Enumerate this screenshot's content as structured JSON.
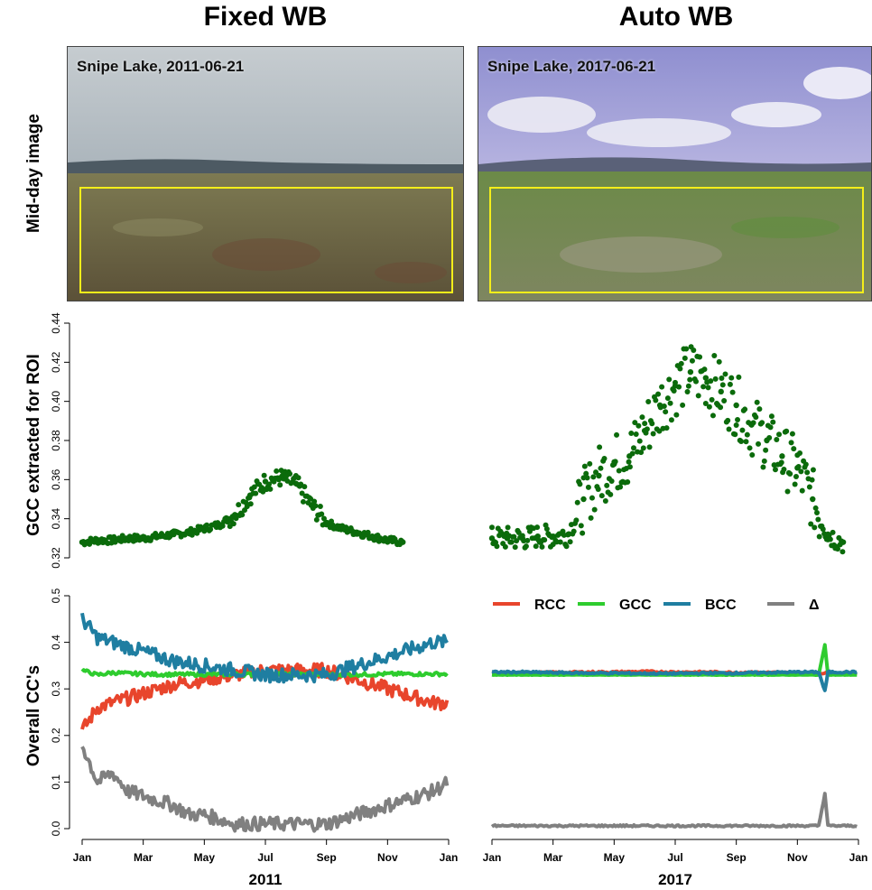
{
  "columns": [
    {
      "title": "Fixed WB",
      "image_caption": "Snipe Lake, 2011-06-21",
      "year_label": "2011"
    },
    {
      "title": "Auto WB",
      "image_caption": "Snipe Lake, 2017-06-21",
      "year_label": "2017"
    }
  ],
  "row_labels": {
    "image": "Mid-day image",
    "gcc": "GCC extracted for ROI",
    "cc": "Overall CC's"
  },
  "legend": [
    {
      "label": "RCC",
      "color": "#e8452c"
    },
    {
      "label": "GCC",
      "color": "#2ecc2e"
    },
    {
      "label": "BCC",
      "color": "#1f7ea1"
    },
    {
      "label": "Δ",
      "color": "#808080"
    }
  ],
  "colors": {
    "gcc_points": "#0b6b0b",
    "roi_box": "#f4ee1a"
  },
  "chart_data": [
    {
      "type": "scatter",
      "panel": "GCC 2011",
      "ylabel": "GCC extracted for ROI",
      "ylim": [
        0.32,
        0.44
      ],
      "yticks": [
        "0.32",
        "0.34",
        "0.36",
        "0.38",
        "0.40",
        "0.42",
        "0.44"
      ],
      "x_month_index": [
        0,
        0.5,
        1,
        1.5,
        2,
        2.5,
        3,
        3.5,
        4,
        4.5,
        5,
        5.5,
        6,
        6.5,
        7,
        7.5,
        8,
        8.5,
        9,
        9.5,
        10,
        10.5
      ],
      "y": [
        0.328,
        0.329,
        0.329,
        0.33,
        0.33,
        0.331,
        0.332,
        0.333,
        0.335,
        0.337,
        0.342,
        0.352,
        0.359,
        0.361,
        0.358,
        0.347,
        0.338,
        0.335,
        0.333,
        0.331,
        0.329,
        0.328
      ]
    },
    {
      "type": "scatter",
      "panel": "GCC 2017",
      "ylim": [
        0.32,
        0.44
      ],
      "x_month_index": [
        0,
        0.5,
        1,
        1.5,
        2,
        2.5,
        3,
        3.5,
        4,
        4.5,
        5,
        5.5,
        6,
        6.5,
        7,
        7.5,
        8,
        8.5,
        9,
        9.5,
        10,
        10.5,
        11,
        11.5
      ],
      "y": [
        0.33,
        0.33,
        0.33,
        0.331,
        0.331,
        0.332,
        0.35,
        0.362,
        0.368,
        0.372,
        0.385,
        0.398,
        0.408,
        0.415,
        0.412,
        0.405,
        0.398,
        0.388,
        0.38,
        0.372,
        0.366,
        0.35,
        0.332,
        0.328
      ]
    },
    {
      "type": "line",
      "panel": "CC 2011",
      "ylabel": "Overall CC's",
      "ylim": [
        0.0,
        0.5
      ],
      "yticks": [
        "0.0",
        "0.1",
        "0.2",
        "0.3",
        "0.4",
        "0.5"
      ],
      "xticks": [
        "Jan",
        "Mar",
        "May",
        "Jul",
        "Sep",
        "Nov",
        "Jan"
      ],
      "xlabel": "2011",
      "x_month_index": [
        0,
        0.5,
        1,
        1.5,
        2,
        2.5,
        3,
        3.5,
        4,
        4.5,
        5,
        5.5,
        6,
        6.5,
        7,
        7.5,
        8,
        8.5,
        9,
        9.5,
        10,
        10.5,
        11,
        11.5,
        12
      ],
      "series": [
        {
          "name": "RCC",
          "values": [
            0.21,
            0.26,
            0.27,
            0.28,
            0.29,
            0.3,
            0.31,
            0.315,
            0.32,
            0.325,
            0.33,
            0.335,
            0.34,
            0.34,
            0.34,
            0.34,
            0.34,
            0.33,
            0.32,
            0.31,
            0.3,
            0.29,
            0.28,
            0.27,
            0.27
          ]
        },
        {
          "name": "GCC",
          "values": [
            0.34,
            0.33,
            0.335,
            0.333,
            0.332,
            0.331,
            0.331,
            0.331,
            0.331,
            0.331,
            0.331,
            0.331,
            0.331,
            0.331,
            0.331,
            0.331,
            0.331,
            0.331,
            0.331,
            0.331,
            0.332,
            0.332,
            0.332,
            0.332,
            0.332
          ]
        },
        {
          "name": "BCC",
          "values": [
            0.45,
            0.41,
            0.4,
            0.39,
            0.38,
            0.37,
            0.36,
            0.355,
            0.35,
            0.345,
            0.34,
            0.335,
            0.33,
            0.33,
            0.33,
            0.33,
            0.33,
            0.34,
            0.35,
            0.36,
            0.37,
            0.38,
            0.39,
            0.4,
            0.4
          ]
        },
        {
          "name": "Δ",
          "values": [
            0.18,
            0.1,
            0.12,
            0.08,
            0.07,
            0.06,
            0.05,
            0.03,
            0.03,
            0.02,
            0.01,
            0.01,
            0.01,
            0.01,
            0.01,
            0.01,
            0.01,
            0.02,
            0.03,
            0.04,
            0.05,
            0.06,
            0.07,
            0.08,
            0.1
          ]
        }
      ]
    },
    {
      "type": "line",
      "panel": "CC 2017",
      "ylim": [
        0.0,
        0.5
      ],
      "xticks": [
        "Jan",
        "Mar",
        "May",
        "Jul",
        "Sep",
        "Nov",
        "Jan"
      ],
      "xlabel": "2017",
      "x_month_index": [
        0,
        1,
        2,
        3,
        4,
        5,
        6,
        7,
        8,
        9,
        10,
        10.5,
        10.7,
        10.9,
        11,
        11.5,
        12
      ],
      "series": [
        {
          "name": "RCC",
          "values": [
            0.333,
            0.334,
            0.335,
            0.336,
            0.336,
            0.337,
            0.336,
            0.336,
            0.335,
            0.335,
            0.334,
            0.334,
            0.334,
            0.334,
            0.334,
            0.334,
            0.334
          ]
        },
        {
          "name": "GCC",
          "values": [
            0.33,
            0.33,
            0.33,
            0.33,
            0.33,
            0.33,
            0.33,
            0.33,
            0.33,
            0.33,
            0.33,
            0.33,
            0.33,
            0.395,
            0.33,
            0.33,
            0.33
          ]
        },
        {
          "name": "BCC",
          "values": [
            0.336,
            0.336,
            0.335,
            0.334,
            0.334,
            0.333,
            0.333,
            0.334,
            0.334,
            0.335,
            0.336,
            0.336,
            0.336,
            0.295,
            0.336,
            0.336,
            0.336
          ]
        },
        {
          "name": "Δ",
          "values": [
            0.006,
            0.006,
            0.006,
            0.006,
            0.006,
            0.006,
            0.006,
            0.006,
            0.006,
            0.006,
            0.006,
            0.006,
            0.006,
            0.075,
            0.006,
            0.006,
            0.006
          ]
        }
      ]
    }
  ]
}
